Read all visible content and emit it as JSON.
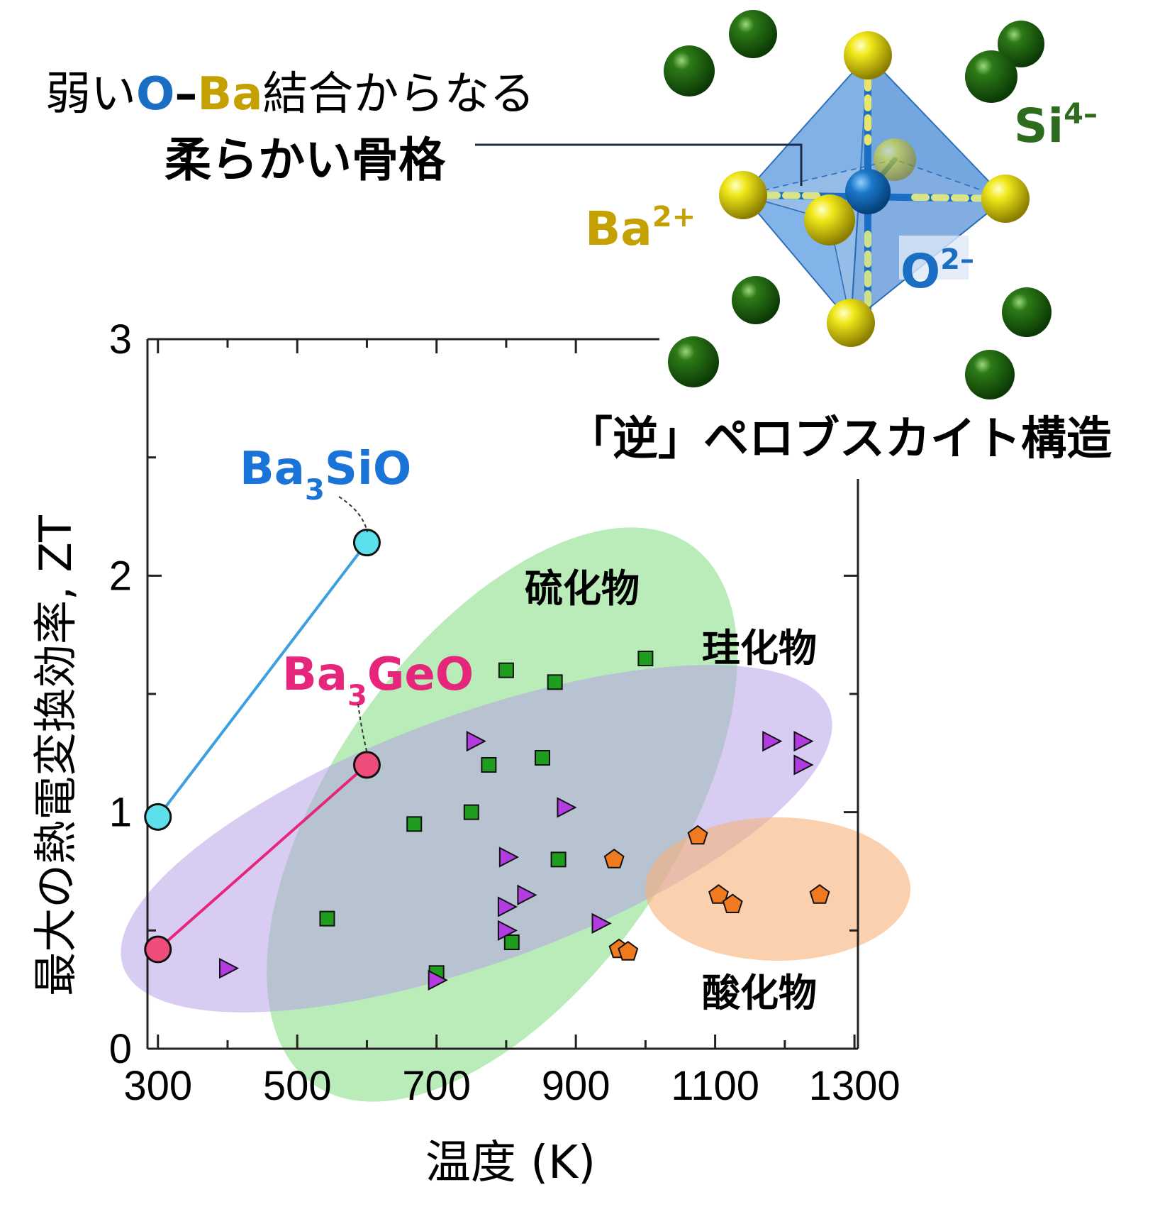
{
  "header": {
    "caption_line1": {
      "prefix": "弱い",
      "o_label": "O",
      "dash": "–",
      "ba_label": "Ba",
      "suffix": "結合からなる"
    },
    "caption_line2": "柔らかい骨格",
    "structure_title": "「逆」ペロブスカイト構造"
  },
  "structure": {
    "ion_labels": {
      "ba": {
        "base": "Ba",
        "sup": "2+"
      },
      "o": {
        "base": "O",
        "sup": "2–"
      },
      "si": {
        "base": "Si",
        "sup": "4–"
      }
    },
    "colors": {
      "si": "#2f6b1f",
      "ba": "#c4a000",
      "o": "#1a6fc4"
    }
  },
  "chart_data": {
    "type": "scatter",
    "xlabel": "温度 (K)",
    "ylabel": "最大の熱電変換効率, ZT",
    "xlim": [
      285,
      1305
    ],
    "ylim": [
      0,
      3
    ],
    "xticks": [
      300,
      500,
      700,
      900,
      1100,
      1300
    ],
    "yticks": [
      0,
      1,
      2,
      3
    ],
    "grid": false,
    "regions": [
      {
        "name": "硫化物",
        "color": "#7fdc7f"
      },
      {
        "name": "珪化物",
        "color": "#b8a3e8"
      },
      {
        "name": "酸化物",
        "color": "#f6b07a"
      }
    ],
    "series": [
      {
        "name": "Ba3SiO",
        "marker": "circle",
        "color": "#3aa0e0",
        "fill": "#5ce1ec",
        "connected": true,
        "points": [
          [
            300,
            0.98
          ],
          [
            600,
            2.14
          ]
        ]
      },
      {
        "name": "Ba3GeO",
        "marker": "circle",
        "color": "#e6267a",
        "fill": "#ee4d7c",
        "connected": true,
        "points": [
          [
            300,
            0.42
          ],
          [
            600,
            1.2
          ]
        ]
      },
      {
        "name": "硫化物",
        "marker": "square",
        "color": "#1f9d1f",
        "points": [
          [
            543,
            0.55
          ],
          [
            668,
            0.95
          ],
          [
            700,
            0.32
          ],
          [
            750,
            1.0
          ],
          [
            775,
            1.2
          ],
          [
            800,
            1.6
          ],
          [
            808,
            0.45
          ],
          [
            852,
            1.23
          ],
          [
            870,
            1.55
          ],
          [
            875,
            0.8
          ],
          [
            1000,
            1.65
          ]
        ]
      },
      {
        "name": "珪化物",
        "marker": "triangle",
        "color": "#b23ce0",
        "points": [
          [
            400,
            0.34
          ],
          [
            700,
            0.29
          ],
          [
            755,
            1.3
          ],
          [
            802,
            0.81
          ],
          [
            800,
            0.6
          ],
          [
            800,
            0.5
          ],
          [
            828,
            0.65
          ],
          [
            885,
            1.02
          ],
          [
            935,
            0.53
          ],
          [
            1180,
            1.3
          ],
          [
            1225,
            1.3
          ],
          [
            1225,
            1.2
          ]
        ]
      },
      {
        "name": "酸化物",
        "marker": "pentagon",
        "color": "#f07a1f",
        "points": [
          [
            955,
            0.8
          ],
          [
            962,
            0.42
          ],
          [
            975,
            0.41
          ],
          [
            1075,
            0.9
          ],
          [
            1105,
            0.65
          ],
          [
            1125,
            0.61
          ],
          [
            1250,
            0.65
          ]
        ]
      }
    ],
    "annotations": [
      {
        "target": "Ba3SiO",
        "base": "Ba",
        "sub": "3",
        "rest": "SiO",
        "color": "#1a73d6"
      },
      {
        "target": "Ba3GeO",
        "base": "Ba",
        "sub": "3",
        "rest": "GeO",
        "color": "#e6267a"
      }
    ]
  }
}
